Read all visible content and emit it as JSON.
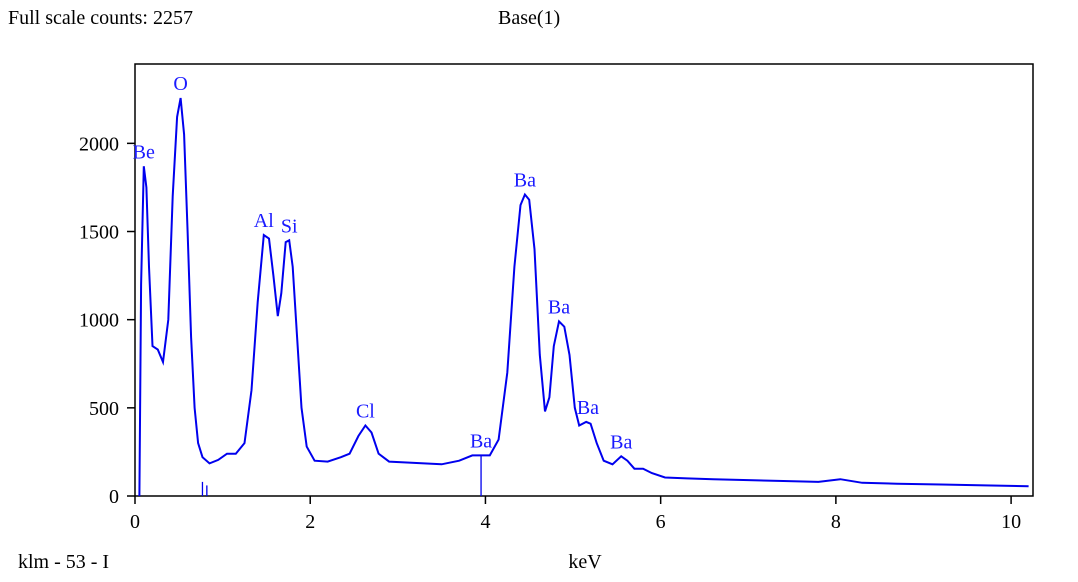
{
  "header": {
    "full_scale": "Full scale counts: 2257",
    "sample": "Base(1)"
  },
  "footer": {
    "marker": "klm - 53 - I"
  },
  "chart_data": {
    "type": "line",
    "title": "",
    "xlabel": "keV",
    "ylabel": "",
    "xlim": [
      0,
      10.25
    ],
    "ylim": [
      0,
      2450
    ],
    "x_ticks": [
      0,
      2,
      4,
      6,
      8,
      10
    ],
    "y_ticks": [
      0,
      500,
      1000,
      1500,
      2000
    ],
    "grid": false,
    "colors": {
      "line": "#0000ee",
      "label": "#1a1aff",
      "axis": "#000000"
    },
    "series": [
      {
        "values": [
          [
            0.05,
            0
          ],
          [
            0.07,
            1200
          ],
          [
            0.1,
            1870
          ],
          [
            0.13,
            1750
          ],
          [
            0.16,
            1300
          ],
          [
            0.2,
            850
          ],
          [
            0.26,
            830
          ],
          [
            0.32,
            760
          ],
          [
            0.38,
            1000
          ],
          [
            0.43,
            1700
          ],
          [
            0.48,
            2150
          ],
          [
            0.52,
            2257
          ],
          [
            0.56,
            2050
          ],
          [
            0.6,
            1500
          ],
          [
            0.64,
            900
          ],
          [
            0.68,
            500
          ],
          [
            0.72,
            300
          ],
          [
            0.77,
            220
          ],
          [
            0.85,
            185
          ],
          [
            0.95,
            205
          ],
          [
            1.05,
            240
          ],
          [
            1.15,
            240
          ],
          [
            1.25,
            300
          ],
          [
            1.33,
            600
          ],
          [
            1.4,
            1100
          ],
          [
            1.47,
            1480
          ],
          [
            1.53,
            1460
          ],
          [
            1.58,
            1250
          ],
          [
            1.63,
            1020
          ],
          [
            1.67,
            1150
          ],
          [
            1.72,
            1440
          ],
          [
            1.76,
            1450
          ],
          [
            1.8,
            1300
          ],
          [
            1.85,
            900
          ],
          [
            1.9,
            500
          ],
          [
            1.96,
            280
          ],
          [
            2.05,
            200
          ],
          [
            2.2,
            195
          ],
          [
            2.35,
            220
          ],
          [
            2.45,
            240
          ],
          [
            2.55,
            340
          ],
          [
            2.63,
            400
          ],
          [
            2.7,
            360
          ],
          [
            2.78,
            240
          ],
          [
            2.9,
            195
          ],
          [
            3.1,
            190
          ],
          [
            3.3,
            185
          ],
          [
            3.5,
            180
          ],
          [
            3.7,
            200
          ],
          [
            3.85,
            230
          ],
          [
            3.95,
            230
          ],
          [
            4.05,
            230
          ],
          [
            4.15,
            320
          ],
          [
            4.25,
            700
          ],
          [
            4.33,
            1300
          ],
          [
            4.4,
            1650
          ],
          [
            4.45,
            1710
          ],
          [
            4.5,
            1680
          ],
          [
            4.56,
            1400
          ],
          [
            4.62,
            800
          ],
          [
            4.68,
            480
          ],
          [
            4.73,
            560
          ],
          [
            4.78,
            850
          ],
          [
            4.84,
            990
          ],
          [
            4.9,
            960
          ],
          [
            4.96,
            800
          ],
          [
            5.02,
            500
          ],
          [
            5.07,
            400
          ],
          [
            5.15,
            420
          ],
          [
            5.2,
            410
          ],
          [
            5.27,
            300
          ],
          [
            5.35,
            200
          ],
          [
            5.45,
            180
          ],
          [
            5.55,
            225
          ],
          [
            5.62,
            200
          ],
          [
            5.7,
            155
          ],
          [
            5.8,
            155
          ],
          [
            5.9,
            130
          ],
          [
            6.05,
            105
          ],
          [
            6.3,
            100
          ],
          [
            6.6,
            95
          ],
          [
            7.0,
            90
          ],
          [
            7.4,
            85
          ],
          [
            7.8,
            80
          ],
          [
            8.05,
            95
          ],
          [
            8.3,
            75
          ],
          [
            8.7,
            70
          ],
          [
            9.2,
            65
          ],
          [
            9.7,
            60
          ],
          [
            10.2,
            55
          ]
        ]
      }
    ],
    "peak_labels": [
      {
        "text": "Be",
        "x": 0.1,
        "y": 1870
      },
      {
        "text": "O",
        "x": 0.52,
        "y": 2257
      },
      {
        "text": "Al",
        "x": 1.47,
        "y": 1480
      },
      {
        "text": "Si",
        "x": 1.76,
        "y": 1450
      },
      {
        "text": "Cl",
        "x": 2.63,
        "y": 400
      },
      {
        "text": "Ba",
        "x": 3.95,
        "y": 230
      },
      {
        "text": "Ba",
        "x": 4.45,
        "y": 1710
      },
      {
        "text": "Ba",
        "x": 4.84,
        "y": 990
      },
      {
        "text": "Ba",
        "x": 5.17,
        "y": 420
      },
      {
        "text": "Ba",
        "x": 5.55,
        "y": 225
      }
    ],
    "marker_lines": [
      {
        "x": 0.77,
        "y": 80
      },
      {
        "x": 0.82,
        "y": 60
      },
      {
        "x": 3.95,
        "y": 230
      }
    ]
  }
}
